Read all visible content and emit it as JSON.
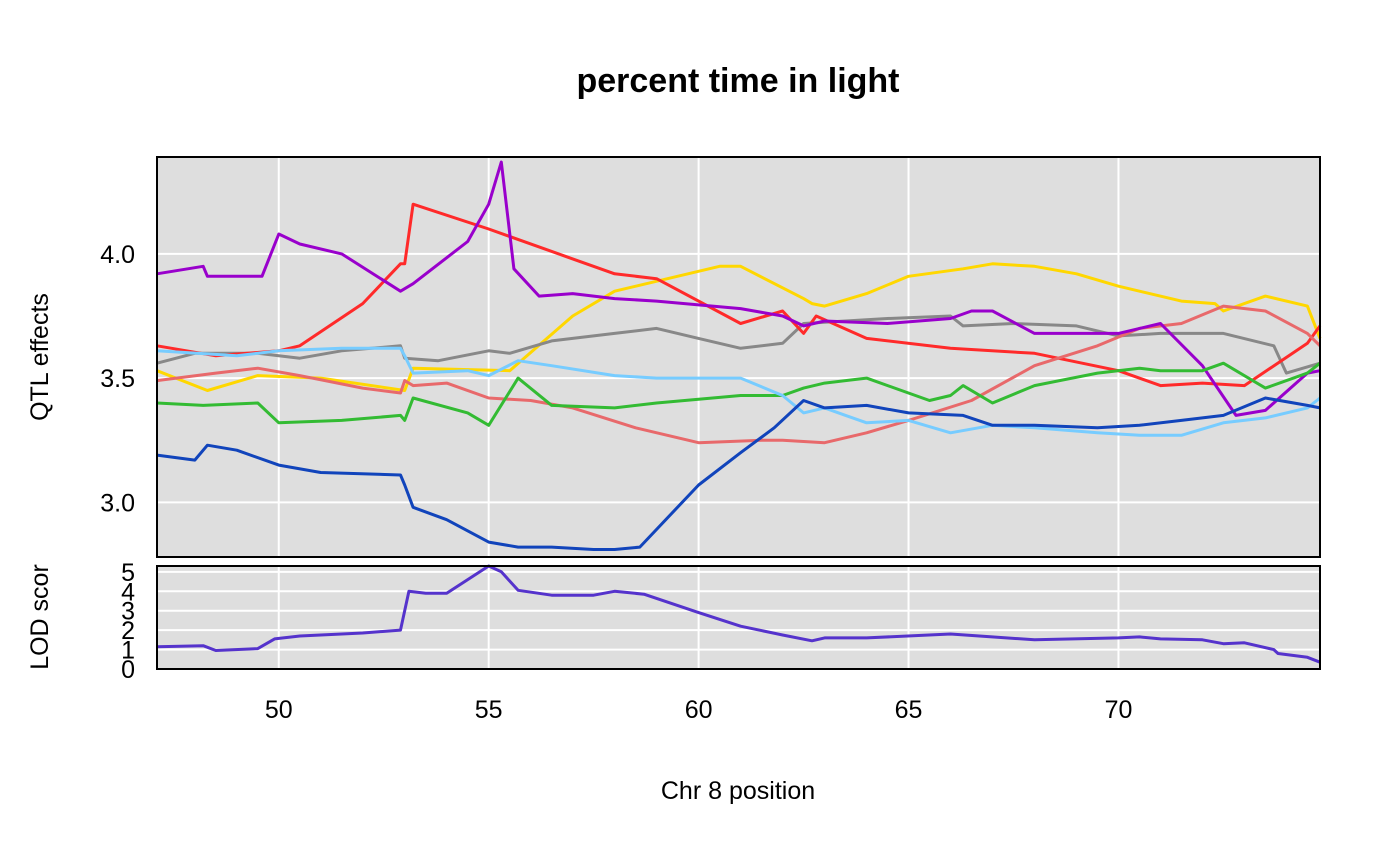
{
  "chart_data": [
    {
      "type": "line",
      "title": "percent time in light",
      "xlabel": "",
      "ylabel": "QTL effects",
      "xlim": [
        47.1,
        74.8
      ],
      "ylim": [
        2.78,
        4.39
      ],
      "x_ticks": [
        50,
        55,
        60,
        65,
        70
      ],
      "y_ticks": [
        3.0,
        3.5,
        4.0
      ],
      "y_tick_labels": [
        "3.0",
        "3.5",
        "4.0"
      ],
      "background": "#DEDEDE",
      "grid": true,
      "series": [
        {
          "color": "#FFD700",
          "x": [
            47.1,
            48.3,
            49.5,
            51.0,
            53.0,
            53.2,
            55.5,
            57.0,
            58.0,
            60.5,
            61.0,
            62.5,
            62.7,
            63.0,
            64.0,
            65.0,
            66.3,
            67.0,
            68.0,
            69.0,
            70.0,
            71.5,
            72.3,
            72.5,
            73.5,
            74.5,
            74.8
          ],
          "y": [
            3.53,
            3.45,
            3.51,
            3.5,
            3.45,
            3.54,
            3.53,
            3.75,
            3.85,
            3.95,
            3.95,
            3.82,
            3.8,
            3.79,
            3.84,
            3.91,
            3.94,
            3.96,
            3.95,
            3.92,
            3.87,
            3.81,
            3.8,
            3.77,
            3.83,
            3.79,
            3.66
          ]
        },
        {
          "color": "#888888",
          "x": [
            47.1,
            48.0,
            49.5,
            50.5,
            51.5,
            52.9,
            53.0,
            53.8,
            55.0,
            55.5,
            56.5,
            58.0,
            59.0,
            60.0,
            61.0,
            62.0,
            62.5,
            63.5,
            64.5,
            66.0,
            66.3,
            67.5,
            69.0,
            70.0,
            71.0,
            72.5,
            73.7,
            74.0,
            74.8
          ],
          "y": [
            3.56,
            3.6,
            3.6,
            3.58,
            3.61,
            3.63,
            3.58,
            3.57,
            3.61,
            3.6,
            3.65,
            3.68,
            3.7,
            3.66,
            3.62,
            3.64,
            3.72,
            3.73,
            3.74,
            3.75,
            3.71,
            3.72,
            3.71,
            3.67,
            3.68,
            3.68,
            3.63,
            3.52,
            3.56
          ]
        },
        {
          "color": "#FF2A2A",
          "x": [
            47.1,
            48.5,
            50.0,
            50.5,
            52.0,
            52.9,
            53.0,
            53.2,
            55.0,
            57.0,
            58.0,
            59.0,
            61.0,
            61.6,
            62.0,
            62.5,
            62.8,
            64.0,
            66.0,
            68.0,
            70.0,
            71.0,
            72.0,
            73.0,
            74.5,
            74.8
          ],
          "y": [
            3.63,
            3.59,
            3.61,
            3.63,
            3.8,
            3.96,
            3.96,
            4.2,
            4.1,
            3.98,
            3.92,
            3.9,
            3.72,
            3.75,
            3.77,
            3.68,
            3.75,
            3.66,
            3.62,
            3.6,
            3.53,
            3.47,
            3.48,
            3.47,
            3.64,
            3.71
          ]
        },
        {
          "color": "#E8696B",
          "x": [
            47.1,
            48.5,
            49.5,
            50.5,
            52.0,
            52.9,
            53.0,
            53.2,
            54.0,
            55.0,
            56.0,
            57.0,
            58.5,
            60.0,
            61.5,
            62.0,
            63.0,
            64.0,
            65.0,
            66.5,
            68.0,
            69.5,
            70.5,
            71.5,
            72.5,
            73.5,
            74.5,
            74.8
          ],
          "y": [
            3.49,
            3.52,
            3.54,
            3.51,
            3.46,
            3.44,
            3.49,
            3.47,
            3.48,
            3.42,
            3.41,
            3.38,
            3.3,
            3.24,
            3.25,
            3.25,
            3.24,
            3.28,
            3.33,
            3.41,
            3.55,
            3.63,
            3.7,
            3.72,
            3.79,
            3.77,
            3.68,
            3.63
          ]
        },
        {
          "color": "#9900CC",
          "x": [
            47.1,
            48.2,
            48.3,
            49.6,
            50.0,
            50.5,
            51.5,
            52.9,
            53.0,
            53.2,
            54.5,
            55.0,
            55.3,
            55.6,
            56.2,
            57.0,
            58.0,
            59.0,
            61.0,
            62.0,
            62.5,
            63.0,
            64.5,
            66.0,
            66.5,
            67.0,
            68.0,
            70.0,
            71.0,
            72.0,
            72.8,
            73.5,
            74.5,
            74.8
          ],
          "y": [
            3.92,
            3.95,
            3.91,
            3.91,
            4.08,
            4.04,
            4.0,
            3.85,
            3.86,
            3.88,
            4.05,
            4.2,
            4.37,
            3.94,
            3.83,
            3.84,
            3.82,
            3.81,
            3.78,
            3.75,
            3.71,
            3.73,
            3.72,
            3.74,
            3.77,
            3.77,
            3.68,
            3.68,
            3.72,
            3.55,
            3.35,
            3.37,
            3.52,
            3.53
          ]
        },
        {
          "color": "#33BB33",
          "x": [
            47.1,
            48.2,
            49.5,
            50.0,
            51.5,
            52.9,
            53.0,
            53.2,
            54.5,
            55.0,
            55.7,
            56.5,
            58.0,
            59.0,
            61.0,
            62.0,
            62.5,
            63.0,
            64.0,
            65.5,
            66.0,
            66.3,
            67.0,
            68.0,
            69.5,
            70.5,
            71.0,
            72.0,
            72.5,
            73.5,
            74.5,
            74.8
          ],
          "y": [
            3.4,
            3.39,
            3.4,
            3.32,
            3.33,
            3.35,
            3.33,
            3.42,
            3.36,
            3.31,
            3.5,
            3.39,
            3.38,
            3.4,
            3.43,
            3.43,
            3.46,
            3.48,
            3.5,
            3.41,
            3.43,
            3.47,
            3.4,
            3.47,
            3.52,
            3.54,
            3.53,
            3.53,
            3.56,
            3.46,
            3.52,
            3.56
          ]
        },
        {
          "color": "#77CCFF",
          "x": [
            47.1,
            49.0,
            49.5,
            50.0,
            51.5,
            52.9,
            53.0,
            53.2,
            54.5,
            55.0,
            55.7,
            56.5,
            58.0,
            59.0,
            61.0,
            62.0,
            62.5,
            63.0,
            63.5,
            64.0,
            65.0,
            66.0,
            67.0,
            68.0,
            69.5,
            70.5,
            71.5,
            72.5,
            73.5,
            74.5,
            74.8
          ],
          "y": [
            3.61,
            3.59,
            3.6,
            3.61,
            3.62,
            3.62,
            3.59,
            3.52,
            3.53,
            3.51,
            3.57,
            3.55,
            3.51,
            3.5,
            3.5,
            3.43,
            3.36,
            3.38,
            3.35,
            3.32,
            3.33,
            3.28,
            3.31,
            3.3,
            3.28,
            3.27,
            3.27,
            3.32,
            3.34,
            3.38,
            3.42
          ]
        },
        {
          "color": "#1144BB",
          "x": [
            47.1,
            48.0,
            48.3,
            49.0,
            50.0,
            51.0,
            52.9,
            53.0,
            53.2,
            54.0,
            55.0,
            55.7,
            56.5,
            57.5,
            58.0,
            58.6,
            60.0,
            61.0,
            61.8,
            62.5,
            63.0,
            64.0,
            65.0,
            66.3,
            67.0,
            68.0,
            69.5,
            70.5,
            71.5,
            72.5,
            73.5,
            74.5,
            74.8
          ],
          "y": [
            3.19,
            3.17,
            3.23,
            3.21,
            3.15,
            3.12,
            3.11,
            3.07,
            2.98,
            2.93,
            2.84,
            2.82,
            2.82,
            2.81,
            2.81,
            2.82,
            3.07,
            3.2,
            3.3,
            3.41,
            3.38,
            3.39,
            3.36,
            3.35,
            3.31,
            3.31,
            3.3,
            3.31,
            3.33,
            3.35,
            3.42,
            3.39,
            3.38
          ]
        }
      ]
    },
    {
      "type": "line",
      "xlabel": "Chr 8 position",
      "ylabel": "LOD scor",
      "xlim": [
        47.1,
        74.8
      ],
      "ylim": [
        0,
        5.3
      ],
      "x_ticks": [
        50,
        55,
        60,
        65,
        70
      ],
      "x_tick_labels": [
        "50",
        "55",
        "60",
        "65",
        "70"
      ],
      "y_ticks": [
        0,
        1,
        2,
        3,
        4,
        5
      ],
      "y_tick_labels": [
        "0",
        "1",
        "2",
        "3",
        "4",
        "5"
      ],
      "background": "#DEDEDE",
      "grid": true,
      "series": [
        {
          "color": "#5533CC",
          "x": [
            47.1,
            48.2,
            48.5,
            49.5,
            49.9,
            50.5,
            52.0,
            52.9,
            53.1,
            53.5,
            54.0,
            55.0,
            55.3,
            55.7,
            56.5,
            57.5,
            58.0,
            58.7,
            60.0,
            61.0,
            62.0,
            62.7,
            63.0,
            64.0,
            66.0,
            68.0,
            70.0,
            70.5,
            71.0,
            72.0,
            72.5,
            73.0,
            73.7,
            73.8,
            74.5,
            74.8
          ],
          "y": [
            1.15,
            1.2,
            0.95,
            1.05,
            1.55,
            1.7,
            1.85,
            2.0,
            4.0,
            3.9,
            3.9,
            5.3,
            5.0,
            4.05,
            3.8,
            3.8,
            4.0,
            3.85,
            2.9,
            2.2,
            1.75,
            1.45,
            1.6,
            1.6,
            1.8,
            1.5,
            1.6,
            1.65,
            1.55,
            1.5,
            1.3,
            1.35,
            1.0,
            0.8,
            0.6,
            0.35
          ]
        }
      ]
    }
  ]
}
